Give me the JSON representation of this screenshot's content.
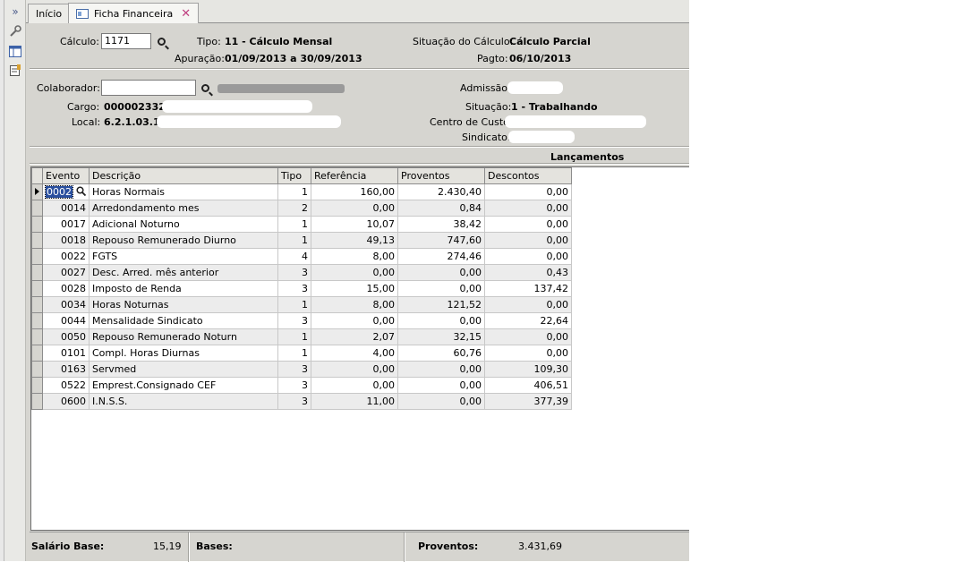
{
  "tabs": [
    {
      "label": "Início"
    },
    {
      "label": "Ficha Financeira"
    }
  ],
  "header": {
    "calculo_label": "Cálculo:",
    "calculo_value": "1171",
    "tipo_label": "Tipo:",
    "tipo_value": "11 - Cálculo Mensal",
    "apuracao_label": "Apuração:",
    "apuracao_value": "01/09/2013 a 30/09/2013",
    "situacao_calc_label": "Situação do Cálculo:",
    "situacao_calc_value": "Cálculo Parcial",
    "pagto_label": "Pagto:",
    "pagto_value": "06/10/2013"
  },
  "colaborador": {
    "colaborador_label": "Colaborador:",
    "cargo_label": "Cargo:",
    "cargo_value": "000002332 -",
    "local_label": "Local:",
    "local_value": "6.2.1.03.1 -",
    "admissao_label": "Admissão:",
    "situacao_label": "Situação:",
    "situacao_value": "1 - Trabalhando",
    "centro_label": "Centro de Custo",
    "sindicato_label": "Sindicato:"
  },
  "lancamentos": {
    "title": "Lançamentos",
    "columns": [
      "Evento",
      "Descrição",
      "Tipo",
      "Referência",
      "Proventos",
      "Descontos"
    ],
    "rows": [
      {
        "evento": "0002",
        "descricao": "Horas Normais",
        "tipo": "1",
        "referencia": "160,00",
        "proventos": "2.430,40",
        "descontos": "0,00"
      },
      {
        "evento": "0014",
        "descricao": "Arredondamento mes",
        "tipo": "2",
        "referencia": "0,00",
        "proventos": "0,84",
        "descontos": "0,00"
      },
      {
        "evento": "0017",
        "descricao": "Adicional Noturno",
        "tipo": "1",
        "referencia": "10,07",
        "proventos": "38,42",
        "descontos": "0,00"
      },
      {
        "evento": "0018",
        "descricao": "Repouso Remunerado Diurno",
        "tipo": "1",
        "referencia": "49,13",
        "proventos": "747,60",
        "descontos": "0,00"
      },
      {
        "evento": "0022",
        "descricao": "FGTS",
        "tipo": "4",
        "referencia": "8,00",
        "proventos": "274,46",
        "descontos": "0,00"
      },
      {
        "evento": "0027",
        "descricao": "Desc. Arred. mês anterior",
        "tipo": "3",
        "referencia": "0,00",
        "proventos": "0,00",
        "descontos": "0,43"
      },
      {
        "evento": "0028",
        "descricao": "Imposto de Renda",
        "tipo": "3",
        "referencia": "15,00",
        "proventos": "0,00",
        "descontos": "137,42"
      },
      {
        "evento": "0034",
        "descricao": "Horas Noturnas",
        "tipo": "1",
        "referencia": "8,00",
        "proventos": "121,52",
        "descontos": "0,00"
      },
      {
        "evento": "0044",
        "descricao": "Mensalidade Sindicato",
        "tipo": "3",
        "referencia": "0,00",
        "proventos": "0,00",
        "descontos": "22,64"
      },
      {
        "evento": "0050",
        "descricao": "Repouso Remunerado Noturn",
        "tipo": "1",
        "referencia": "2,07",
        "proventos": "32,15",
        "descontos": "0,00"
      },
      {
        "evento": "0101",
        "descricao": "Compl. Horas Diurnas",
        "tipo": "1",
        "referencia": "4,00",
        "proventos": "60,76",
        "descontos": "0,00"
      },
      {
        "evento": "0163",
        "descricao": "Servmed",
        "tipo": "3",
        "referencia": "0,00",
        "proventos": "0,00",
        "descontos": "109,30"
      },
      {
        "evento": "0522",
        "descricao": "Emprest.Consignado CEF",
        "tipo": "3",
        "referencia": "0,00",
        "proventos": "0,00",
        "descontos": "406,51"
      },
      {
        "evento": "0600",
        "descricao": "I.N.S.S.",
        "tipo": "3",
        "referencia": "11,00",
        "proventos": "0,00",
        "descontos": "377,39"
      }
    ]
  },
  "footer": {
    "salario_base_label": "Salário Base:",
    "salario_base_value": "15,19",
    "bases_label": "Bases:",
    "proventos_label": "Proventos:",
    "proventos_value": "3.431,69"
  },
  "icons": {
    "toolbar": [
      "expand-icon",
      "wrench-icon",
      "panel-icon",
      "form-icon"
    ],
    "tab": "form-tab-icon",
    "close": "close-icon",
    "search": "search-icon",
    "row_indicator": "row-pointer-icon"
  }
}
